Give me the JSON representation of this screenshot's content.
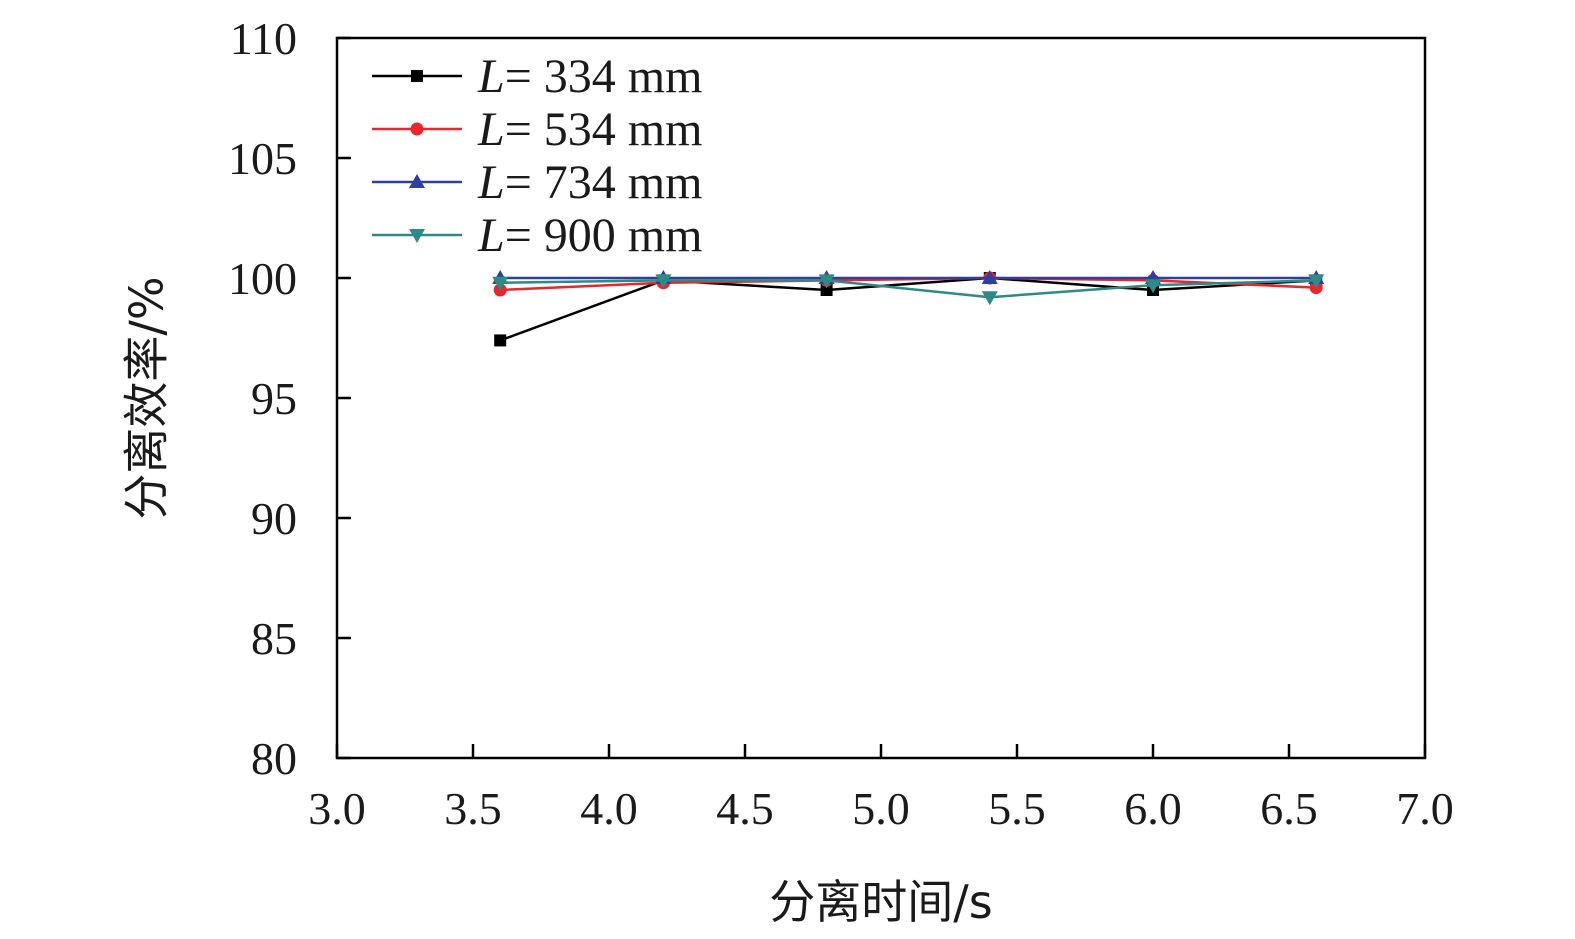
{
  "chart_data": {
    "type": "line",
    "title": "",
    "xlabel": "分离时间/s",
    "ylabel": "分离效率/%",
    "xlim": [
      3.0,
      7.0
    ],
    "ylim": [
      80,
      110
    ],
    "xticks": [
      "3.0",
      "3.5",
      "4.0",
      "4.5",
      "5.0",
      "5.5",
      "6.0",
      "6.5",
      "7.0"
    ],
    "yticks": [
      "80",
      "85",
      "90",
      "95",
      "100",
      "105",
      "110"
    ],
    "grid": false,
    "legend_position": "top-left",
    "x": [
      3.6,
      4.2,
      4.8,
      5.4,
      6.0,
      6.6
    ],
    "series": [
      {
        "name_var": "L",
        "name_rest": "= 334 mm",
        "color": "#000000",
        "marker": "square",
        "values": [
          97.4,
          99.9,
          99.5,
          100.0,
          99.5,
          99.9
        ]
      },
      {
        "name_var": "L",
        "name_rest": "= 534 mm",
        "color": "#e8262b",
        "marker": "circle",
        "values": [
          99.5,
          99.8,
          99.9,
          100.0,
          99.9,
          99.6
        ]
      },
      {
        "name_var": "L",
        "name_rest": "= 734 mm",
        "color": "#2f3f9e",
        "marker": "triangle-up",
        "values": [
          100.0,
          100.0,
          100.0,
          100.0,
          100.0,
          100.0
        ]
      },
      {
        "name_var": "L",
        "name_rest": "= 900 mm",
        "color": "#2e8a84",
        "marker": "triangle-down",
        "values": [
          99.8,
          99.9,
          99.9,
          99.2,
          99.7,
          99.9
        ]
      }
    ]
  }
}
